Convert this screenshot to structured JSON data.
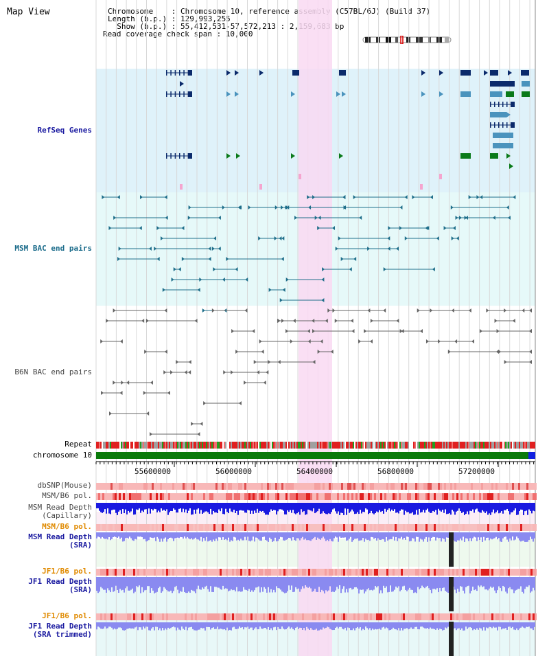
{
  "title": "Map View",
  "info": {
    "chromosome": "Chromosome    : Chromosome 10, reference assembly (C57BL/6J) (Build 37)",
    "length": "Length (b.p.) : 129,993,255",
    "show": "  Show (b.p.) : 55,412,531-57,572,213 : 2,159,683 bp",
    "read_span": "Read coverage check span : 10,000"
  },
  "tracks": {
    "refseq": "RefSeq Genes",
    "msm_bac": "MSM BAC end pairs",
    "b6n_bac": "B6N BAC end pairs",
    "repeat": "Repeat",
    "chromosome": "chromosome 10",
    "dbsnp": "dbSNP(Mouse)",
    "msm_b6_pol_1": "MSM/B6 pol.",
    "msm_read_cap_1": "MSM Read Depth",
    "msm_read_cap_2": "(Capillary)",
    "msm_b6_pol_2": "MSM/B6 pol.",
    "msm_read_sra_1": "MSM Read Depth",
    "msm_read_sra_2": "(SRA)",
    "jf1_b6_pol_1": "JF1/B6 pol.",
    "jf1_read_sra_1": "JF1 Read Depth",
    "jf1_read_sra_2": "(SRA)",
    "jf1_b6_pol_2": "JF1/B6 pol.",
    "jf1_read_trim_1": "JF1 Read Depth",
    "jf1_read_trim_2": "(SRA trimmed)"
  },
  "axis": {
    "ticks": [
      "55600000",
      "56000000",
      "56400000",
      "56800000",
      "57200000"
    ]
  },
  "colors": {
    "refseq_bg": "#dff2fa",
    "bac_bg": "#e6f9f9",
    "highlight": "#f9d9f2",
    "gene_dark": "#0b2a6b",
    "gene_mid": "#4a93bd",
    "gene_green": "#0a7a1a",
    "bac_teal": "#1f6e8a",
    "bac_gray": "#666666",
    "chrom_green": "#0a7a0a",
    "depth_blue": "#1a1ae0",
    "depth_light": "#8a8af0"
  }
}
